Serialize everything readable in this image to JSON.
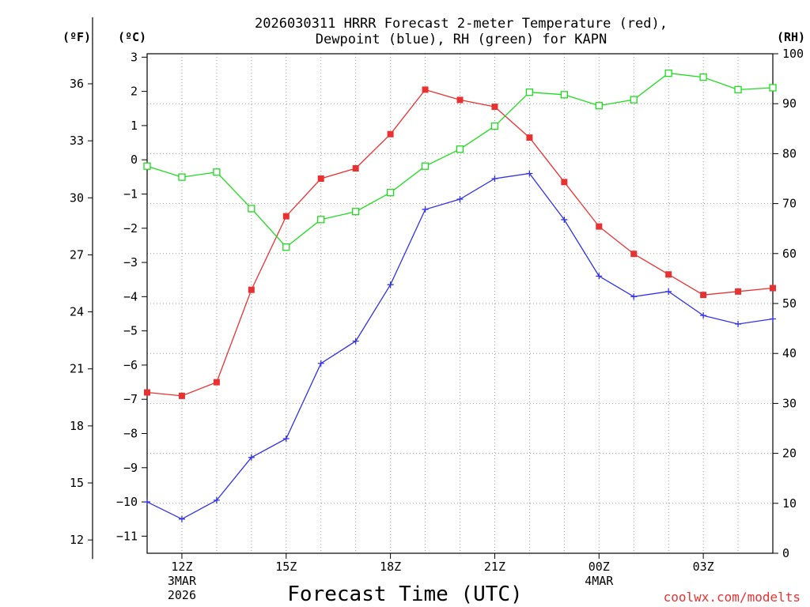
{
  "chart_data": {
    "type": "line",
    "title_line1": "2026030311 HRRR Forecast 2-meter Temperature (red),",
    "title_line2": "Dewpoint (blue), RH (green) for KAPN",
    "xlabel": "Forecast Time (UTC)",
    "watermark": "coolwx.com/modelts",
    "unit_f": "(ºF)",
    "unit_c": "(ºC)",
    "unit_rh": "(RH)",
    "x_ticks": [
      {
        "hour": 1,
        "lines": [
          "12Z",
          "3MAR",
          "2026"
        ]
      },
      {
        "hour": 4,
        "lines": [
          "15Z"
        ]
      },
      {
        "hour": 7,
        "lines": [
          "18Z"
        ]
      },
      {
        "hour": 10,
        "lines": [
          "21Z"
        ]
      },
      {
        "hour": 13,
        "lines": [
          "00Z",
          "4MAR"
        ]
      },
      {
        "hour": 16,
        "lines": [
          "03Z"
        ]
      }
    ],
    "x_range": [
      0,
      18
    ],
    "celsius_range": [
      -11.5,
      3.1
    ],
    "celsius_ticks": [
      3,
      2,
      1,
      0,
      -1,
      -2,
      -3,
      -4,
      -5,
      -6,
      -7,
      -8,
      -9,
      -10,
      -11
    ],
    "celsius_tick_labels": [
      "3",
      "2",
      "1",
      "0",
      "−1",
      "−2",
      "−3",
      "−4",
      "−5",
      "−6",
      "−7",
      "−8",
      "−9",
      "−10",
      "−11"
    ],
    "fahrenheit_ticks": [
      36,
      33,
      30,
      27,
      24,
      21,
      18,
      15,
      12
    ],
    "fahrenheit_tick_labels": [
      "36",
      "33",
      "30",
      "27",
      "24",
      "21",
      "18",
      "15",
      "12"
    ],
    "rh_range": [
      0,
      100
    ],
    "rh_ticks": [
      0,
      10,
      20,
      30,
      40,
      50,
      60,
      70,
      80,
      90,
      100
    ],
    "rh_tick_labels": [
      "0",
      "10",
      "20",
      "30",
      "40",
      "50",
      "60",
      "70",
      "80",
      "90",
      "100"
    ],
    "series": [
      {
        "name": "Temperature",
        "axis": "celsius",
        "color": "#e83232",
        "marker": "filled-square",
        "x": [
          0,
          1,
          2,
          3,
          4,
          5,
          6,
          7,
          8,
          9,
          10,
          11,
          12,
          13,
          14,
          15,
          16,
          17,
          18
        ],
        "values": [
          -6.8,
          -6.9,
          -6.5,
          -3.8,
          -1.65,
          -0.55,
          -0.25,
          0.75,
          2.05,
          1.75,
          1.55,
          0.65,
          -0.65,
          -1.95,
          -2.75,
          -3.35,
          -3.95,
          -3.85,
          -3.75
        ]
      },
      {
        "name": "Dewpoint",
        "axis": "celsius",
        "color": "#3232e8",
        "marker": "plus",
        "x": [
          0,
          1,
          2,
          3,
          4,
          5,
          6,
          7,
          8,
          9,
          10,
          11,
          12,
          13,
          14,
          15,
          16,
          17,
          18
        ],
        "values": [
          -10.0,
          -10.5,
          -9.95,
          -8.7,
          -8.15,
          -5.95,
          -5.3,
          -3.65,
          -1.45,
          -1.15,
          -0.55,
          -0.4,
          -1.75,
          -3.4,
          -4.0,
          -3.85,
          -4.55,
          -4.8,
          -4.65
        ]
      },
      {
        "name": "RH",
        "axis": "rh",
        "color": "#1edc1e",
        "marker": "open-square",
        "x": [
          0,
          1,
          2,
          3,
          4,
          5,
          6,
          7,
          8,
          9,
          10,
          11,
          12,
          13,
          14,
          15,
          16,
          17,
          18
        ],
        "values": [
          77.5,
          75.3,
          76.3,
          69.0,
          61.3,
          66.8,
          68.4,
          72.2,
          77.5,
          80.9,
          85.5,
          92.3,
          91.8,
          89.6,
          90.8,
          96.1,
          95.3,
          92.8,
          93.2
        ]
      }
    ]
  }
}
